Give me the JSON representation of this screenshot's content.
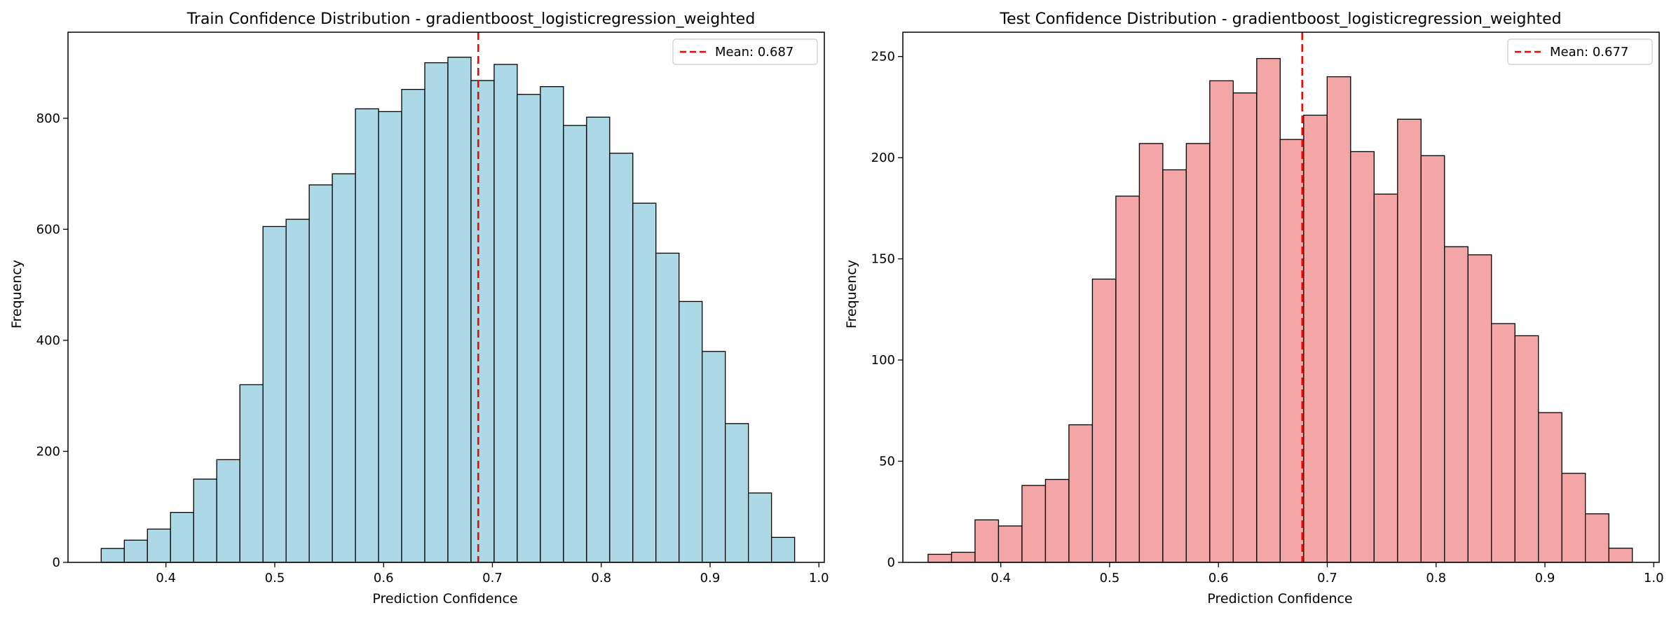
{
  "chart_data": [
    {
      "type": "bar",
      "title": "Train Confidence Distribution - gradientboost_logisticregression_weighted",
      "xlabel": "Prediction Confidence",
      "ylabel": "Frequency",
      "xlim": [
        0.31,
        1.005
      ],
      "ylim": [
        0,
        955
      ],
      "xticks": [
        0.4,
        0.5,
        0.6,
        0.7,
        0.8,
        0.9,
        1.0
      ],
      "xtick_labels": [
        "0.4",
        "0.5",
        "0.6",
        "0.7",
        "0.8",
        "0.9",
        "1.0"
      ],
      "yticks": [
        0,
        200,
        400,
        600,
        800
      ],
      "ytick_labels": [
        "0",
        "200",
        "400",
        "600",
        "800"
      ],
      "bins_start": 0.3405,
      "bin_width": 0.02124,
      "values": [
        25,
        40,
        60,
        90,
        150,
        185,
        320,
        605,
        618,
        680,
        700,
        817,
        812,
        852,
        900,
        910,
        868,
        897,
        843,
        857,
        787,
        802,
        737,
        647,
        557,
        470,
        380,
        250,
        125,
        45
      ],
      "bar_color": "#add8e6",
      "edge_color": "#000000",
      "mean": 0.687,
      "mean_color": "#ff0000",
      "legend": {
        "label": "Mean: 0.687",
        "position": "top-right"
      },
      "grid": false
    },
    {
      "type": "bar",
      "title": "Test Confidence Distribution - gradientboost_logisticregression_weighted",
      "xlabel": "Prediction Confidence",
      "ylabel": "Frequency",
      "xlim": [
        0.31,
        1.005
      ],
      "ylim": [
        0,
        262
      ],
      "xticks": [
        0.4,
        0.5,
        0.6,
        0.7,
        0.8,
        0.9,
        1.0
      ],
      "xtick_labels": [
        "0.4",
        "0.5",
        "0.6",
        "0.7",
        "0.8",
        "0.9",
        "1.0"
      ],
      "yticks": [
        0,
        50,
        100,
        150,
        200,
        250
      ],
      "ytick_labels": [
        "0",
        "50",
        "100",
        "150",
        "200",
        "250"
      ],
      "bins_start": 0.3332,
      "bin_width": 0.02157,
      "values": [
        4,
        5,
        21,
        18,
        38,
        41,
        68,
        140,
        181,
        207,
        194,
        207,
        238,
        232,
        249,
        209,
        221,
        240,
        203,
        182,
        219,
        201,
        156,
        152,
        118,
        112,
        74,
        44,
        24,
        7
      ],
      "bar_color": "#f4a6a6",
      "edge_color": "#000000",
      "mean": 0.677,
      "mean_color": "#ff0000",
      "legend": {
        "label": "Mean: 0.677",
        "position": "top-right"
      },
      "grid": false
    }
  ]
}
